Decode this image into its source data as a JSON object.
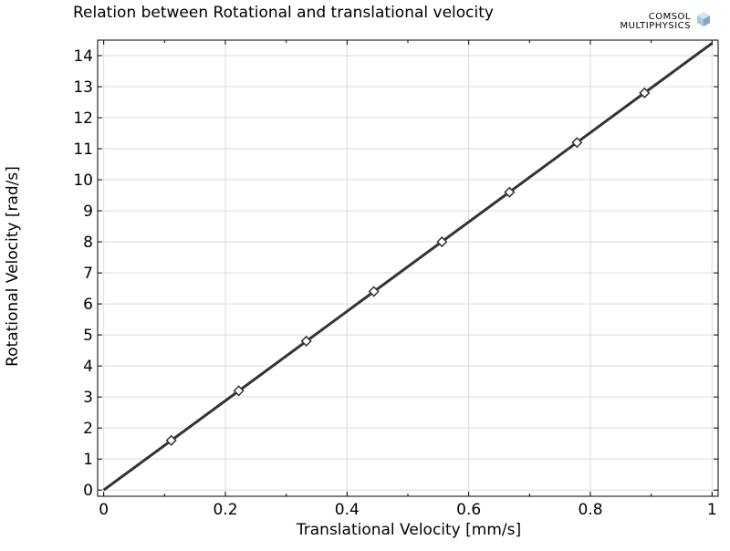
{
  "chart_data": {
    "type": "line",
    "title": "Relation between Rotational and translational velocity",
    "xlabel": "Translational Velocity [mm/s]",
    "ylabel": "Rotational Velocity [rad/s]",
    "xlim": [
      -0.01,
      1.01
    ],
    "ylim": [
      -0.2,
      14.5
    ],
    "xticks": [
      0,
      0.2,
      0.4,
      0.6,
      0.8,
      1
    ],
    "xtick_labels": [
      "0",
      "0.2",
      "0.4",
      "0.6",
      "0.8",
      "1"
    ],
    "yticks": [
      0,
      1,
      2,
      3,
      4,
      5,
      6,
      7,
      8,
      9,
      10,
      11,
      12,
      13,
      14
    ],
    "ytick_labels": [
      "0",
      "1",
      "2",
      "3",
      "4",
      "5",
      "6",
      "7",
      "8",
      "9",
      "10",
      "11",
      "12",
      "13",
      "14"
    ],
    "grid": true,
    "legend": "none",
    "series": [
      {
        "x": [
          0,
          1
        ],
        "y": [
          0,
          14.4
        ],
        "color": "#333333",
        "marker": "none"
      },
      {
        "x": [
          0.111,
          0.222,
          0.333,
          0.444,
          0.556,
          0.667,
          0.778,
          0.889
        ],
        "y": [
          1.6,
          3.2,
          4.8,
          6.4,
          8.0,
          9.6,
          11.2,
          12.8
        ],
        "color": "#333333",
        "marker": "diamond"
      }
    ]
  },
  "logo": {
    "line1": "COMSOL",
    "line2": "MULTIPHYSICS",
    "color": "#a9c6db"
  },
  "colors": {
    "axis": "#000000",
    "grid": "#dcdcdc",
    "line": "#333333"
  }
}
